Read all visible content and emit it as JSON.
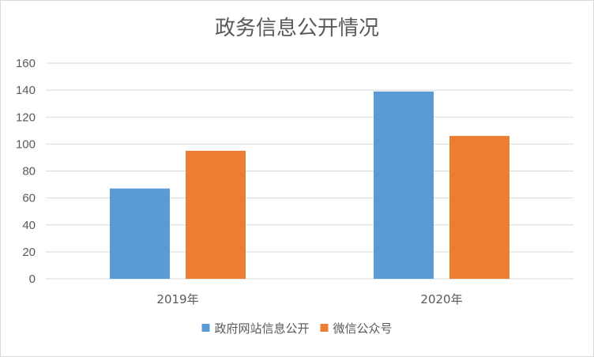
{
  "chart_data": {
    "type": "bar",
    "title": "政务信息公开情况",
    "categories": [
      "2019年",
      "2020年"
    ],
    "series": [
      {
        "name": "政府网站信息公开",
        "color": "#5b9bd5",
        "values": [
          67,
          139
        ]
      },
      {
        "name": "微信公众号",
        "color": "#ed7d31",
        "values": [
          95,
          106
        ]
      }
    ],
    "ylim": [
      0,
      160
    ],
    "yticks": [
      0,
      20,
      40,
      60,
      80,
      100,
      120,
      140,
      160
    ],
    "grid": true,
    "legend_position": "bottom"
  }
}
